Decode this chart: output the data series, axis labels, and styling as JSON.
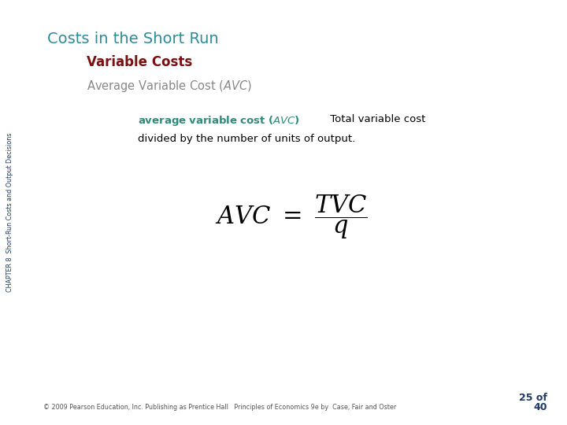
{
  "title": "Costs in the Short Run",
  "title_color": "#2E8B9A",
  "subtitle": "Variable Costs",
  "subtitle_color": "#7B1010",
  "section_label": "Average Variable Cost (",
  "section_label_avc": "AVC",
  "section_label_end": ")",
  "section_color": "#888888",
  "def_colored": "average variable cost (​AVC​)",
  "def_colored_color": "#2E8B7A",
  "def_black1": " Total variable cost",
  "def_black2": "divided by the number of units of output.",
  "def_color": "#000000",
  "formula": "$\\mathit{AVC}\\ =\\ \\dfrac{\\mathit{TVC}}{\\mathit{q}}$",
  "sidebar_text": "CHAPTER 8  Short-Run Costs and Output Decisions",
  "sidebar_color": "#1F3864",
  "footer_text": "© 2009 Pearson Education, Inc. Publishing as Prentice Hall   Principles of Economics 9e by  Case, Fair and Oster",
  "footer_color": "#555555",
  "page_num_top": "25 of",
  "page_num_bot": "40",
  "page_num_color": "#1F3864",
  "bg_color": "#FFFFFF"
}
